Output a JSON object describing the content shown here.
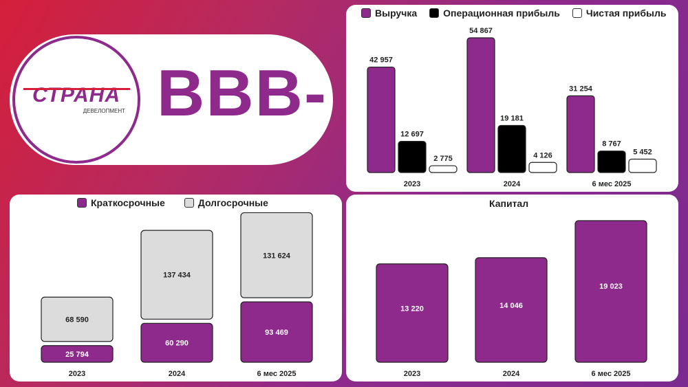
{
  "logo": {
    "word": "СТРАНА",
    "sub": "ДЕВЕЛОПМЕНТ"
  },
  "rating": "BBB-",
  "colors": {
    "purple": "#8e2a8c",
    "black": "#000000",
    "white": "#ffffff",
    "gray": "#dcdcdc"
  },
  "chart_data": [
    {
      "type": "bar",
      "categories": [
        "2023",
        "2024",
        "6 мес 2025"
      ],
      "series": [
        {
          "name": "Выручка",
          "values": [
            42957,
            54867,
            31254
          ],
          "labels": [
            "42 957",
            "54 867",
            "31 254"
          ],
          "color": "#8e2a8c"
        },
        {
          "name": "Операционная прибыль",
          "values": [
            12697,
            19181,
            8767
          ],
          "labels": [
            "12 697",
            "19 181",
            "8 767"
          ],
          "color": "#000000"
        },
        {
          "name": "Чистая прибыль",
          "values": [
            2775,
            4126,
            5452
          ],
          "labels": [
            "2 775",
            "4 126",
            "5 452"
          ],
          "color": "#ffffff"
        }
      ],
      "legend": "top"
    },
    {
      "type": "bar",
      "stacked": true,
      "categories": [
        "2023",
        "2024",
        "6 мес 2025"
      ],
      "series": [
        {
          "name": "Краткосрочные",
          "values": [
            25794,
            60290,
            93469
          ],
          "labels": [
            "25 794",
            "60 290",
            "93 469"
          ],
          "color": "#8e2a8c"
        },
        {
          "name": "Долгосрочные",
          "values": [
            68590,
            137434,
            131624
          ],
          "labels": [
            "68 590",
            "137 434",
            "131 624"
          ],
          "color": "#dcdcdc"
        }
      ],
      "legend": "top"
    },
    {
      "type": "bar",
      "title": "Капитал",
      "categories": [
        "2023",
        "2024",
        "6 мес 2025"
      ],
      "series": [
        {
          "name": "Капитал",
          "values": [
            13220,
            14046,
            19023
          ],
          "labels": [
            "13 220",
            "14 046",
            "19 023"
          ],
          "color": "#8e2a8c"
        }
      ]
    }
  ]
}
